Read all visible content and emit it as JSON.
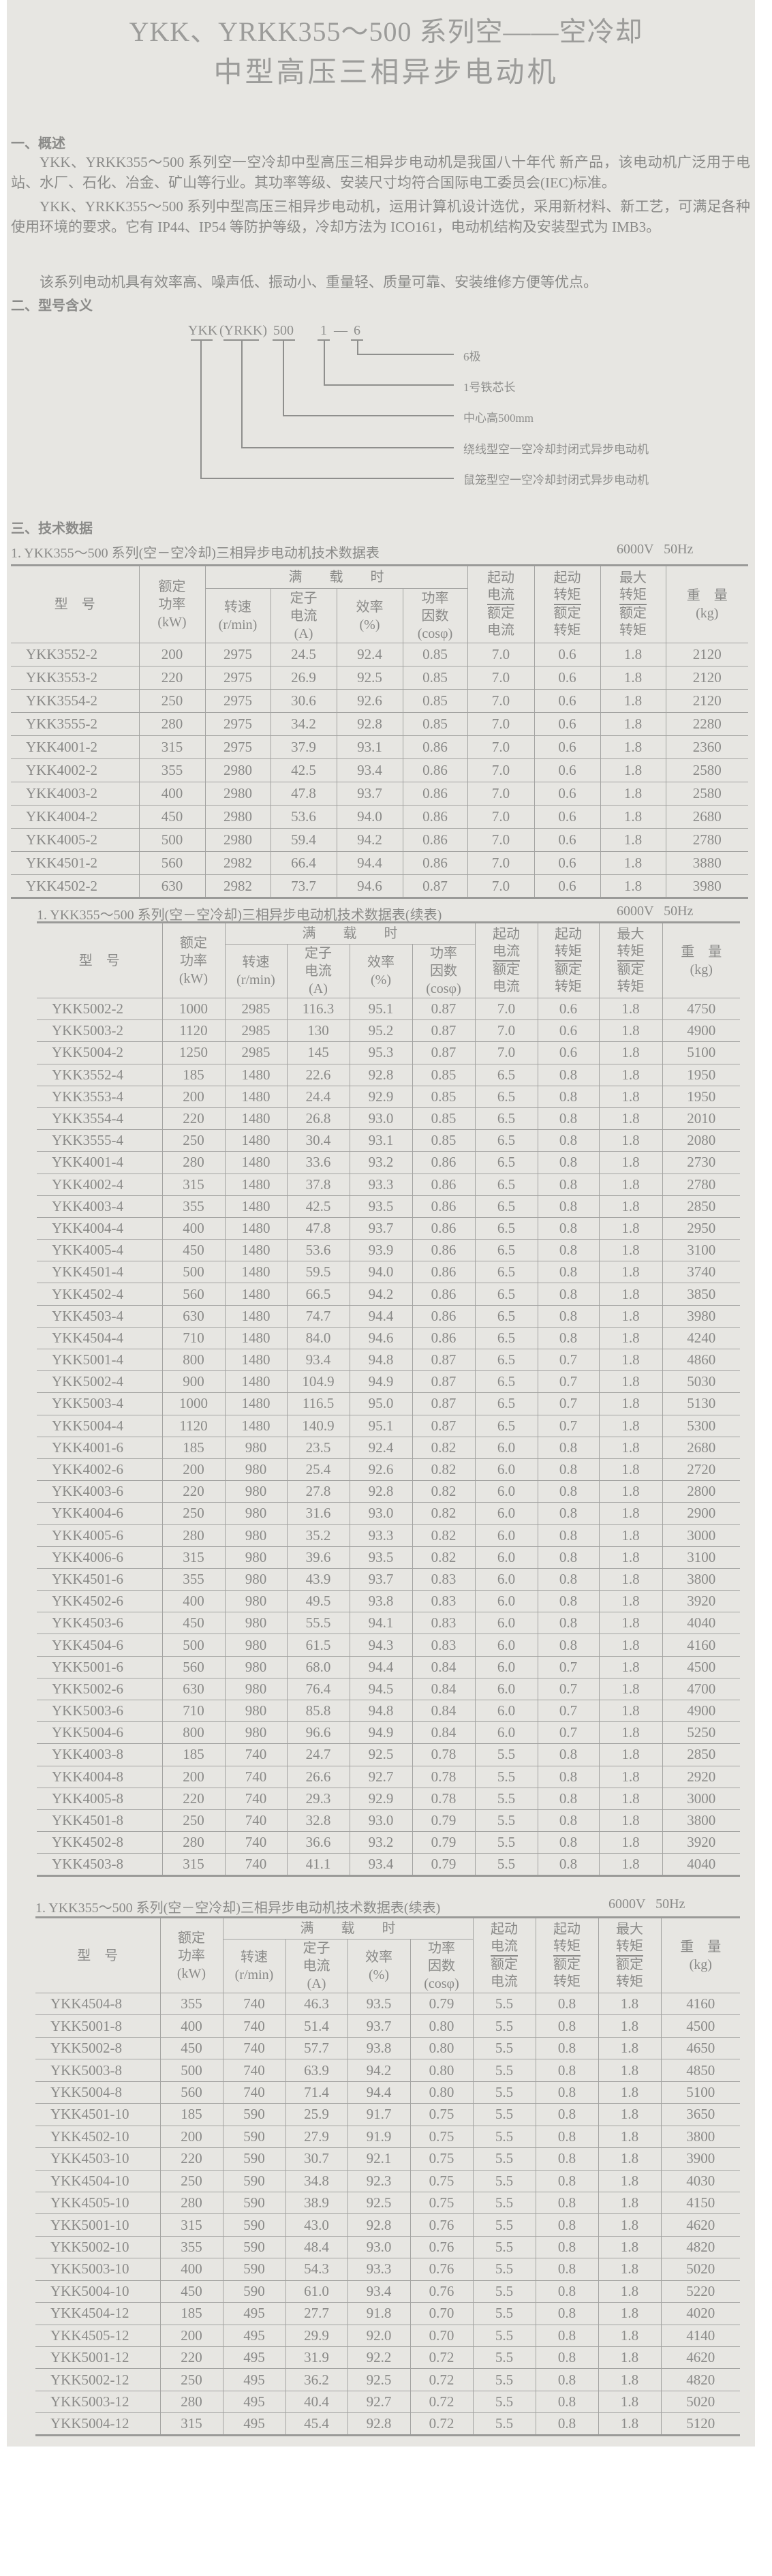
{
  "title": {
    "line1": "YKK、YRKK355～500 系列空——空冷却",
    "line2": "中型高压三相异步电动机"
  },
  "overview": {
    "heading": "一、概述",
    "paragraphs": [
      "YKK、YRKK355～500 系列空一空冷却中型高压三相异步电动机是我国八十年代  新产品，该电动机广泛用于电站、水厂、石化、冶金、矿山等行业。其功率等级、安装尺寸均符合国际电工委员会(IEC)标准。",
      "YKK、YRKK355～500 系列中型高压三相异步电动机，运用计算机设计选优，采用新材料、新工艺，可满足各种使用环境的要求。它有 IP44、IP54 等防护等级，冷却方法为 ICO161，电动机结构及安装型式为 IMB3。",
      "该系列电动机具有效率高、噪声低、振动小、重量轻、质量可靠、安装维修方便等优点。"
    ]
  },
  "model_meaning": {
    "heading": "二、型号含义",
    "code": {
      "ykk": "YKK",
      "yrkk": "(YRKK)",
      "height": "500",
      "core": "1",
      "dash": "—",
      "poles": "6"
    },
    "labels": {
      "poles": "6极",
      "core": "1号铁芯长",
      "height": "中心高500mm",
      "yrkk": "绕线型空一空冷却封闭式异步电动机",
      "ykk": "鼠笼型空一空冷却封闭式异步电动机"
    }
  },
  "tech_data": {
    "heading": "三、技术数据",
    "header": {
      "model": "型　号",
      "power": "额定\n功率\n(kW)",
      "full_load": "满　　载　　时",
      "speed": "转速\n(r/min)",
      "current": "定子\n电流\n(A)",
      "efficiency": "效率\n(%)",
      "pf": "功率\n因数\n(cosφ)",
      "start_current_top": "起动\n电流",
      "start_current_bot": "额定\n电流",
      "start_torque_top": "起动\n转矩",
      "start_torque_bot": "额定\n转矩",
      "max_torque_top": "最大\n转矩",
      "max_torque_bot": "额定\n转矩",
      "weight": "重　量\n(kg)"
    },
    "tables": [
      {
        "title": "1. YKK355～500 系列(空－空冷却)三相异步电动机技术数据表",
        "freq": "6000V   50Hz",
        "rows": [
          [
            "YKK3552-2",
            "200",
            "2975",
            "24.5",
            "92.4",
            "0.85",
            "7.0",
            "0.6",
            "1.8",
            "2120"
          ],
          [
            "YKK3553-2",
            "220",
            "2975",
            "26.9",
            "92.5",
            "0.85",
            "7.0",
            "0.6",
            "1.8",
            "2120"
          ],
          [
            "YKK3554-2",
            "250",
            "2975",
            "30.6",
            "92.6",
            "0.85",
            "7.0",
            "0.6",
            "1.8",
            "2120"
          ],
          [
            "YKK3555-2",
            "280",
            "2975",
            "34.2",
            "92.8",
            "0.85",
            "7.0",
            "0.6",
            "1.8",
            "2280"
          ],
          [
            "YKK4001-2",
            "315",
            "2975",
            "37.9",
            "93.1",
            "0.86",
            "7.0",
            "0.6",
            "1.8",
            "2360"
          ],
          [
            "YKK4002-2",
            "355",
            "2980",
            "42.5",
            "93.4",
            "0.86",
            "7.0",
            "0.6",
            "1.8",
            "2580"
          ],
          [
            "YKK4003-2",
            "400",
            "2980",
            "47.8",
            "93.7",
            "0.86",
            "7.0",
            "0.6",
            "1.8",
            "2580"
          ],
          [
            "YKK4004-2",
            "450",
            "2980",
            "53.6",
            "94.0",
            "0.86",
            "7.0",
            "0.6",
            "1.8",
            "2680"
          ],
          [
            "YKK4005-2",
            "500",
            "2980",
            "59.4",
            "94.2",
            "0.86",
            "7.0",
            "0.6",
            "1.8",
            "2780"
          ],
          [
            "YKK4501-2",
            "560",
            "2982",
            "66.4",
            "94.4",
            "0.86",
            "7.0",
            "0.6",
            "1.8",
            "3880"
          ],
          [
            "YKK4502-2",
            "630",
            "2982",
            "73.7",
            "94.6",
            "0.87",
            "7.0",
            "0.6",
            "1.8",
            "3980"
          ]
        ]
      },
      {
        "title": "1. YKK355～500 系列(空－空冷却)三相异步电动机技术数据表(续表)",
        "freq": "6000V   50Hz",
        "rows": [
          [
            "YKK5002-2",
            "1000",
            "2985",
            "116.3",
            "95.1",
            "0.87",
            "7.0",
            "0.6",
            "1.8",
            "4750"
          ],
          [
            "YKK5003-2",
            "1120",
            "2985",
            "130",
            "95.2",
            "0.87",
            "7.0",
            "0.6",
            "1.8",
            "4900"
          ],
          [
            "YKK5004-2",
            "1250",
            "2985",
            "145",
            "95.3",
            "0.87",
            "7.0",
            "0.6",
            "1.8",
            "5100"
          ],
          [
            "YKK3552-4",
            "185",
            "1480",
            "22.6",
            "92.8",
            "0.85",
            "6.5",
            "0.8",
            "1.8",
            "1950"
          ],
          [
            "YKK3553-4",
            "200",
            "1480",
            "24.4",
            "92.9",
            "0.85",
            "6.5",
            "0.8",
            "1.8",
            "1950"
          ],
          [
            "YKK3554-4",
            "220",
            "1480",
            "26.8",
            "93.0",
            "0.85",
            "6.5",
            "0.8",
            "1.8",
            "2010"
          ],
          [
            "YKK3555-4",
            "250",
            "1480",
            "30.4",
            "93.1",
            "0.85",
            "6.5",
            "0.8",
            "1.8",
            "2080"
          ],
          [
            "YKK4001-4",
            "280",
            "1480",
            "33.6",
            "93.2",
            "0.86",
            "6.5",
            "0.8",
            "1.8",
            "2730"
          ],
          [
            "YKK4002-4",
            "315",
            "1480",
            "37.8",
            "93.3",
            "0.86",
            "6.5",
            "0.8",
            "1.8",
            "2780"
          ],
          [
            "YKK4003-4",
            "355",
            "1480",
            "42.5",
            "93.5",
            "0.86",
            "6.5",
            "0.8",
            "1.8",
            "2850"
          ],
          [
            "YKK4004-4",
            "400",
            "1480",
            "47.8",
            "93.7",
            "0.86",
            "6.5",
            "0.8",
            "1.8",
            "2950"
          ],
          [
            "YKK4005-4",
            "450",
            "1480",
            "53.6",
            "93.9",
            "0.86",
            "6.5",
            "0.8",
            "1.8",
            "3100"
          ],
          [
            "YKK4501-4",
            "500",
            "1480",
            "59.5",
            "94.0",
            "0.86",
            "6.5",
            "0.8",
            "1.8",
            "3740"
          ],
          [
            "YKK4502-4",
            "560",
            "1480",
            "66.5",
            "94.2",
            "0.86",
            "6.5",
            "0.8",
            "1.8",
            "3850"
          ],
          [
            "YKK4503-4",
            "630",
            "1480",
            "74.7",
            "94.4",
            "0.86",
            "6.5",
            "0.8",
            "1.8",
            "3980"
          ],
          [
            "YKK4504-4",
            "710",
            "1480",
            "84.0",
            "94.6",
            "0.86",
            "6.5",
            "0.8",
            "1.8",
            "4240"
          ],
          [
            "YKK5001-4",
            "800",
            "1480",
            "93.4",
            "94.8",
            "0.87",
            "6.5",
            "0.7",
            "1.8",
            "4860"
          ],
          [
            "YKK5002-4",
            "900",
            "1480",
            "104.9",
            "94.9",
            "0.87",
            "6.5",
            "0.7",
            "1.8",
            "5030"
          ],
          [
            "YKK5003-4",
            "1000",
            "1480",
            "116.5",
            "95.0",
            "0.87",
            "6.5",
            "0.7",
            "1.8",
            "5130"
          ],
          [
            "YKK5004-4",
            "1120",
            "1480",
            "140.9",
            "95.1",
            "0.87",
            "6.5",
            "0.7",
            "1.8",
            "5300"
          ],
          [
            "YKK4001-6",
            "185",
            "980",
            "23.5",
            "92.4",
            "0.82",
            "6.0",
            "0.8",
            "1.8",
            "2680"
          ],
          [
            "YKK4002-6",
            "200",
            "980",
            "25.4",
            "92.6",
            "0.82",
            "6.0",
            "0.8",
            "1.8",
            "2720"
          ],
          [
            "YKK4003-6",
            "220",
            "980",
            "27.8",
            "92.8",
            "0.82",
            "6.0",
            "0.8",
            "1.8",
            "2800"
          ],
          [
            "YKK4004-6",
            "250",
            "980",
            "31.6",
            "93.0",
            "0.82",
            "6.0",
            "0.8",
            "1.8",
            "2900"
          ],
          [
            "YKK4005-6",
            "280",
            "980",
            "35.2",
            "93.3",
            "0.82",
            "6.0",
            "0.8",
            "1.8",
            "3000"
          ],
          [
            "YKK4006-6",
            "315",
            "980",
            "39.6",
            "93.5",
            "0.82",
            "6.0",
            "0.8",
            "1.8",
            "3100"
          ],
          [
            "YKK4501-6",
            "355",
            "980",
            "43.9",
            "93.7",
            "0.83",
            "6.0",
            "0.8",
            "1.8",
            "3800"
          ],
          [
            "YKK4502-6",
            "400",
            "980",
            "49.5",
            "93.8",
            "0.83",
            "6.0",
            "0.8",
            "1.8",
            "3920"
          ],
          [
            "YKK4503-6",
            "450",
            "980",
            "55.5",
            "94.1",
            "0.83",
            "6.0",
            "0.8",
            "1.8",
            "4040"
          ],
          [
            "YKK4504-6",
            "500",
            "980",
            "61.5",
            "94.3",
            "0.83",
            "6.0",
            "0.8",
            "1.8",
            "4160"
          ],
          [
            "YKK5001-6",
            "560",
            "980",
            "68.0",
            "94.4",
            "0.84",
            "6.0",
            "0.7",
            "1.8",
            "4500"
          ],
          [
            "YKK5002-6",
            "630",
            "980",
            "76.4",
            "94.5",
            "0.84",
            "6.0",
            "0.7",
            "1.8",
            "4700"
          ],
          [
            "YKK5003-6",
            "710",
            "980",
            "85.8",
            "94.8",
            "0.84",
            "6.0",
            "0.7",
            "1.8",
            "4900"
          ],
          [
            "YKK5004-6",
            "800",
            "980",
            "96.6",
            "94.9",
            "0.84",
            "6.0",
            "0.7",
            "1.8",
            "5250"
          ],
          [
            "YKK4003-8",
            "185",
            "740",
            "24.7",
            "92.5",
            "0.78",
            "5.5",
            "0.8",
            "1.8",
            "2850"
          ],
          [
            "YKK4004-8",
            "200",
            "740",
            "26.6",
            "92.7",
            "0.78",
            "5.5",
            "0.8",
            "1.8",
            "2920"
          ],
          [
            "YKK4005-8",
            "220",
            "740",
            "29.3",
            "92.9",
            "0.78",
            "5.5",
            "0.8",
            "1.8",
            "3000"
          ],
          [
            "YKK4501-8",
            "250",
            "740",
            "32.8",
            "93.0",
            "0.79",
            "5.5",
            "0.8",
            "1.8",
            "3800"
          ],
          [
            "YKK4502-8",
            "280",
            "740",
            "36.6",
            "93.2",
            "0.79",
            "5.5",
            "0.8",
            "1.8",
            "3920"
          ],
          [
            "YKK4503-8",
            "315",
            "740",
            "41.1",
            "93.4",
            "0.79",
            "5.5",
            "0.8",
            "1.8",
            "4040"
          ]
        ]
      },
      {
        "title": "1. YKK355～500 系列(空－空冷却)三相异步电动机技术数据表(续表)",
        "freq": "6000V   50Hz",
        "rows": [
          [
            "YKK4504-8",
            "355",
            "740",
            "46.3",
            "93.5",
            "0.79",
            "5.5",
            "0.8",
            "1.8",
            "4160"
          ],
          [
            "YKK5001-8",
            "400",
            "740",
            "51.4",
            "93.7",
            "0.80",
            "5.5",
            "0.8",
            "1.8",
            "4500"
          ],
          [
            "YKK5002-8",
            "450",
            "740",
            "57.7",
            "93.8",
            "0.80",
            "5.5",
            "0.8",
            "1.8",
            "4650"
          ],
          [
            "YKK5003-8",
            "500",
            "740",
            "63.9",
            "94.2",
            "0.80",
            "5.5",
            "0.8",
            "1.8",
            "4850"
          ],
          [
            "YKK5004-8",
            "560",
            "740",
            "71.4",
            "94.4",
            "0.80",
            "5.5",
            "0.8",
            "1.8",
            "5100"
          ],
          [
            "YKK4501-10",
            "185",
            "590",
            "25.9",
            "91.7",
            "0.75",
            "5.5",
            "0.8",
            "1.8",
            "3650"
          ],
          [
            "YKK4502-10",
            "200",
            "590",
            "27.9",
            "91.9",
            "0.75",
            "5.5",
            "0.8",
            "1.8",
            "3800"
          ],
          [
            "YKK4503-10",
            "220",
            "590",
            "30.7",
            "92.1",
            "0.75",
            "5.5",
            "0.8",
            "1.8",
            "3900"
          ],
          [
            "YKK4504-10",
            "250",
            "590",
            "34.8",
            "92.3",
            "0.75",
            "5.5",
            "0.8",
            "1.8",
            "4030"
          ],
          [
            "YKK4505-10",
            "280",
            "590",
            "38.9",
            "92.5",
            "0.75",
            "5.5",
            "0.8",
            "1.8",
            "4150"
          ],
          [
            "YKK5001-10",
            "315",
            "590",
            "43.0",
            "92.8",
            "0.76",
            "5.5",
            "0.8",
            "1.8",
            "4620"
          ],
          [
            "YKK5002-10",
            "355",
            "590",
            "48.4",
            "93.0",
            "0.76",
            "5.5",
            "0.8",
            "1.8",
            "4820"
          ],
          [
            "YKK5003-10",
            "400",
            "590",
            "54.3",
            "93.3",
            "0.76",
            "5.5",
            "0.8",
            "1.8",
            "5020"
          ],
          [
            "YKK5004-10",
            "450",
            "590",
            "61.0",
            "93.4",
            "0.76",
            "5.5",
            "0.8",
            "1.8",
            "5220"
          ],
          [
            "YKK4504-12",
            "185",
            "495",
            "27.7",
            "91.8",
            "0.70",
            "5.5",
            "0.8",
            "1.8",
            "4020"
          ],
          [
            "YKK4505-12",
            "200",
            "495",
            "29.9",
            "92.0",
            "0.70",
            "5.5",
            "0.8",
            "1.8",
            "4140"
          ],
          [
            "YKK5001-12",
            "220",
            "495",
            "31.9",
            "92.2",
            "0.72",
            "5.5",
            "0.8",
            "1.8",
            "4620"
          ],
          [
            "YKK5002-12",
            "250",
            "495",
            "36.2",
            "92.5",
            "0.72",
            "5.5",
            "0.8",
            "1.8",
            "4820"
          ],
          [
            "YKK5003-12",
            "280",
            "495",
            "40.4",
            "92.7",
            "0.72",
            "5.5",
            "0.8",
            "1.8",
            "5020"
          ],
          [
            "YKK5004-12",
            "315",
            "495",
            "45.4",
            "92.8",
            "0.72",
            "5.5",
            "0.8",
            "1.8",
            "5120"
          ]
        ]
      }
    ]
  }
}
